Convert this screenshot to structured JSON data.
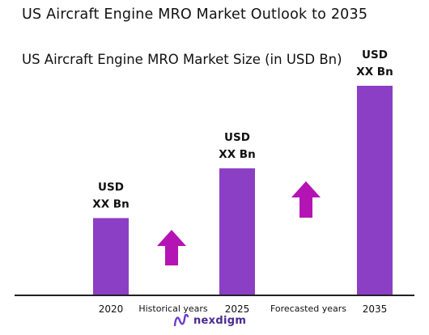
{
  "page_title": "US Aircraft Engine MRO Market Outlook to 2035",
  "chart_data": {
    "type": "bar",
    "title": "US Aircraft Engine MRO Market Size (in USD Bn)",
    "categories": [
      "2020",
      "2025",
      "2035"
    ],
    "values": [
      1.0,
      1.65,
      2.73
    ],
    "value_labels": [
      [
        "USD",
        "XX Bn"
      ],
      [
        "USD",
        "XX Bn"
      ],
      [
        "USD",
        "XX Bn"
      ]
    ],
    "period_labels": [
      "Historical years",
      "Forecasted years"
    ],
    "ylim": [
      0,
      3
    ],
    "grid": false,
    "legend": "none",
    "bar_color": "#8a3fc4",
    "arrow_color": "#b514b5"
  },
  "watermark": {
    "text": "nexdigm"
  }
}
